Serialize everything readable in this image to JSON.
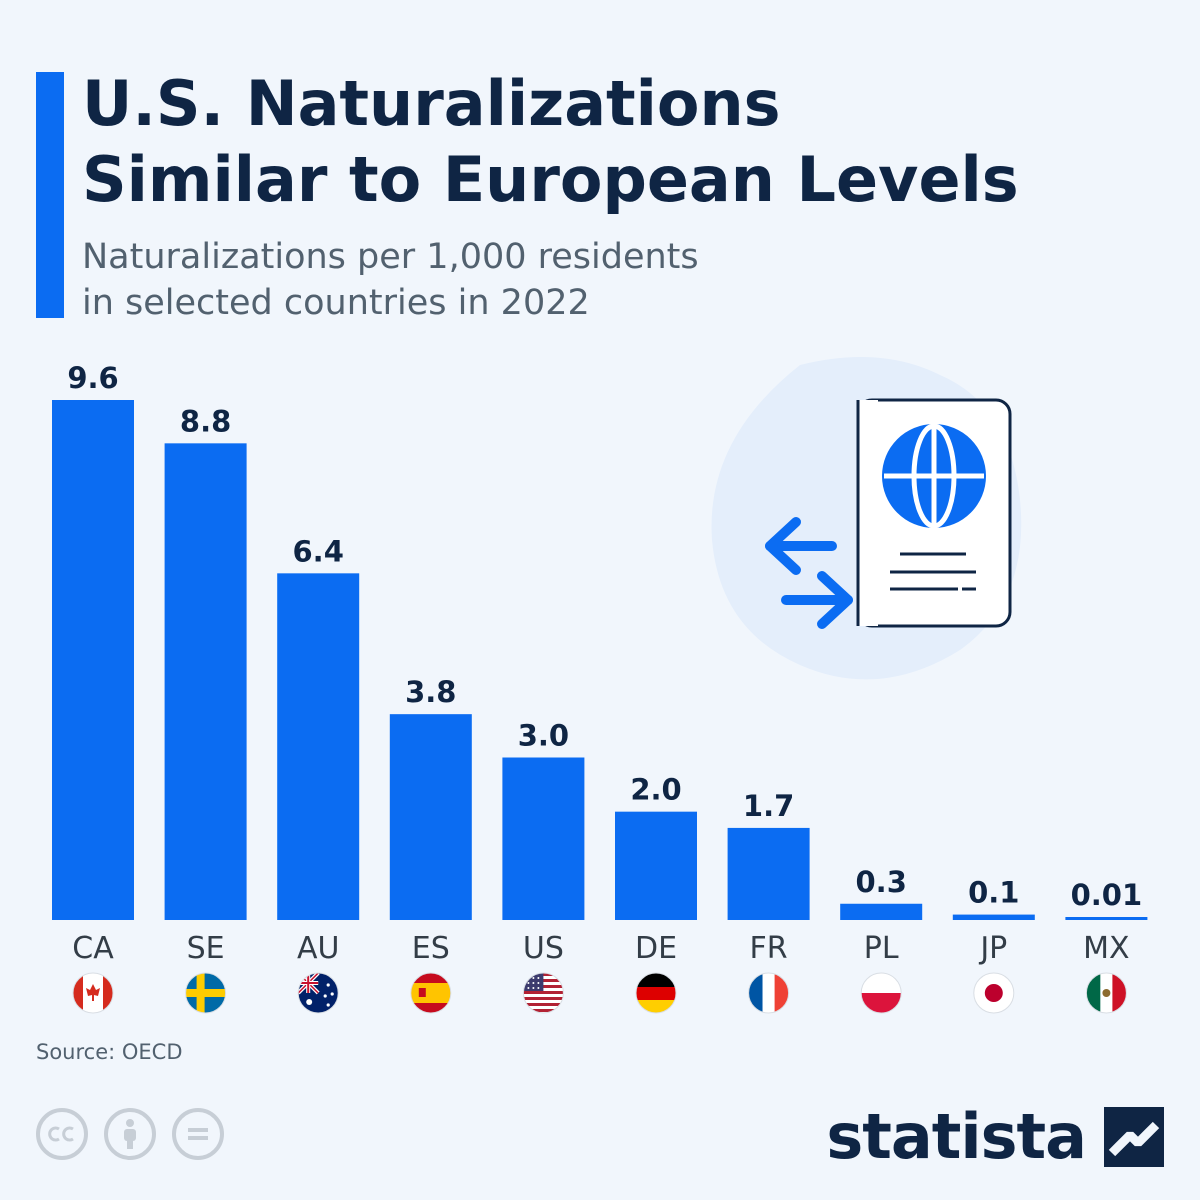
{
  "title_lines": [
    "U.S. Naturalizations",
    "Similar to European Levels"
  ],
  "subtitle_lines": [
    "Naturalizations per 1,000 residents",
    "in selected countries in 2022"
  ],
  "source": "Source: OECD",
  "brand": "statista",
  "colors": {
    "bar": "#0b6cf2",
    "text_dark": "#0f2544",
    "text_muted": "#52616f",
    "background": "#f1f6fc"
  },
  "icons": [
    "passport-icon",
    "globe-icon",
    "exchange-arrows-icon",
    "cc-icon",
    "attribution-icon",
    "no-derivatives-icon",
    "statista-logo-icon"
  ],
  "chart_data": {
    "type": "bar",
    "categories": [
      "CA",
      "SE",
      "AU",
      "ES",
      "US",
      "DE",
      "FR",
      "PL",
      "JP",
      "MX"
    ],
    "values": [
      9.6,
      8.8,
      6.4,
      3.8,
      3.0,
      2.0,
      1.7,
      0.3,
      0.1,
      0.01
    ],
    "value_labels": [
      "9.6",
      "8.8",
      "6.4",
      "3.8",
      "3.0",
      "2.0",
      "1.7",
      "0.3",
      "0.1",
      "0.01"
    ],
    "flags": [
      "canada-flag",
      "sweden-flag",
      "australia-flag",
      "spain-flag",
      "usa-flag",
      "germany-flag",
      "france-flag",
      "poland-flag",
      "japan-flag",
      "mexico-flag"
    ],
    "ylim": [
      0,
      9.6
    ],
    "grid": false,
    "legend": "none"
  }
}
